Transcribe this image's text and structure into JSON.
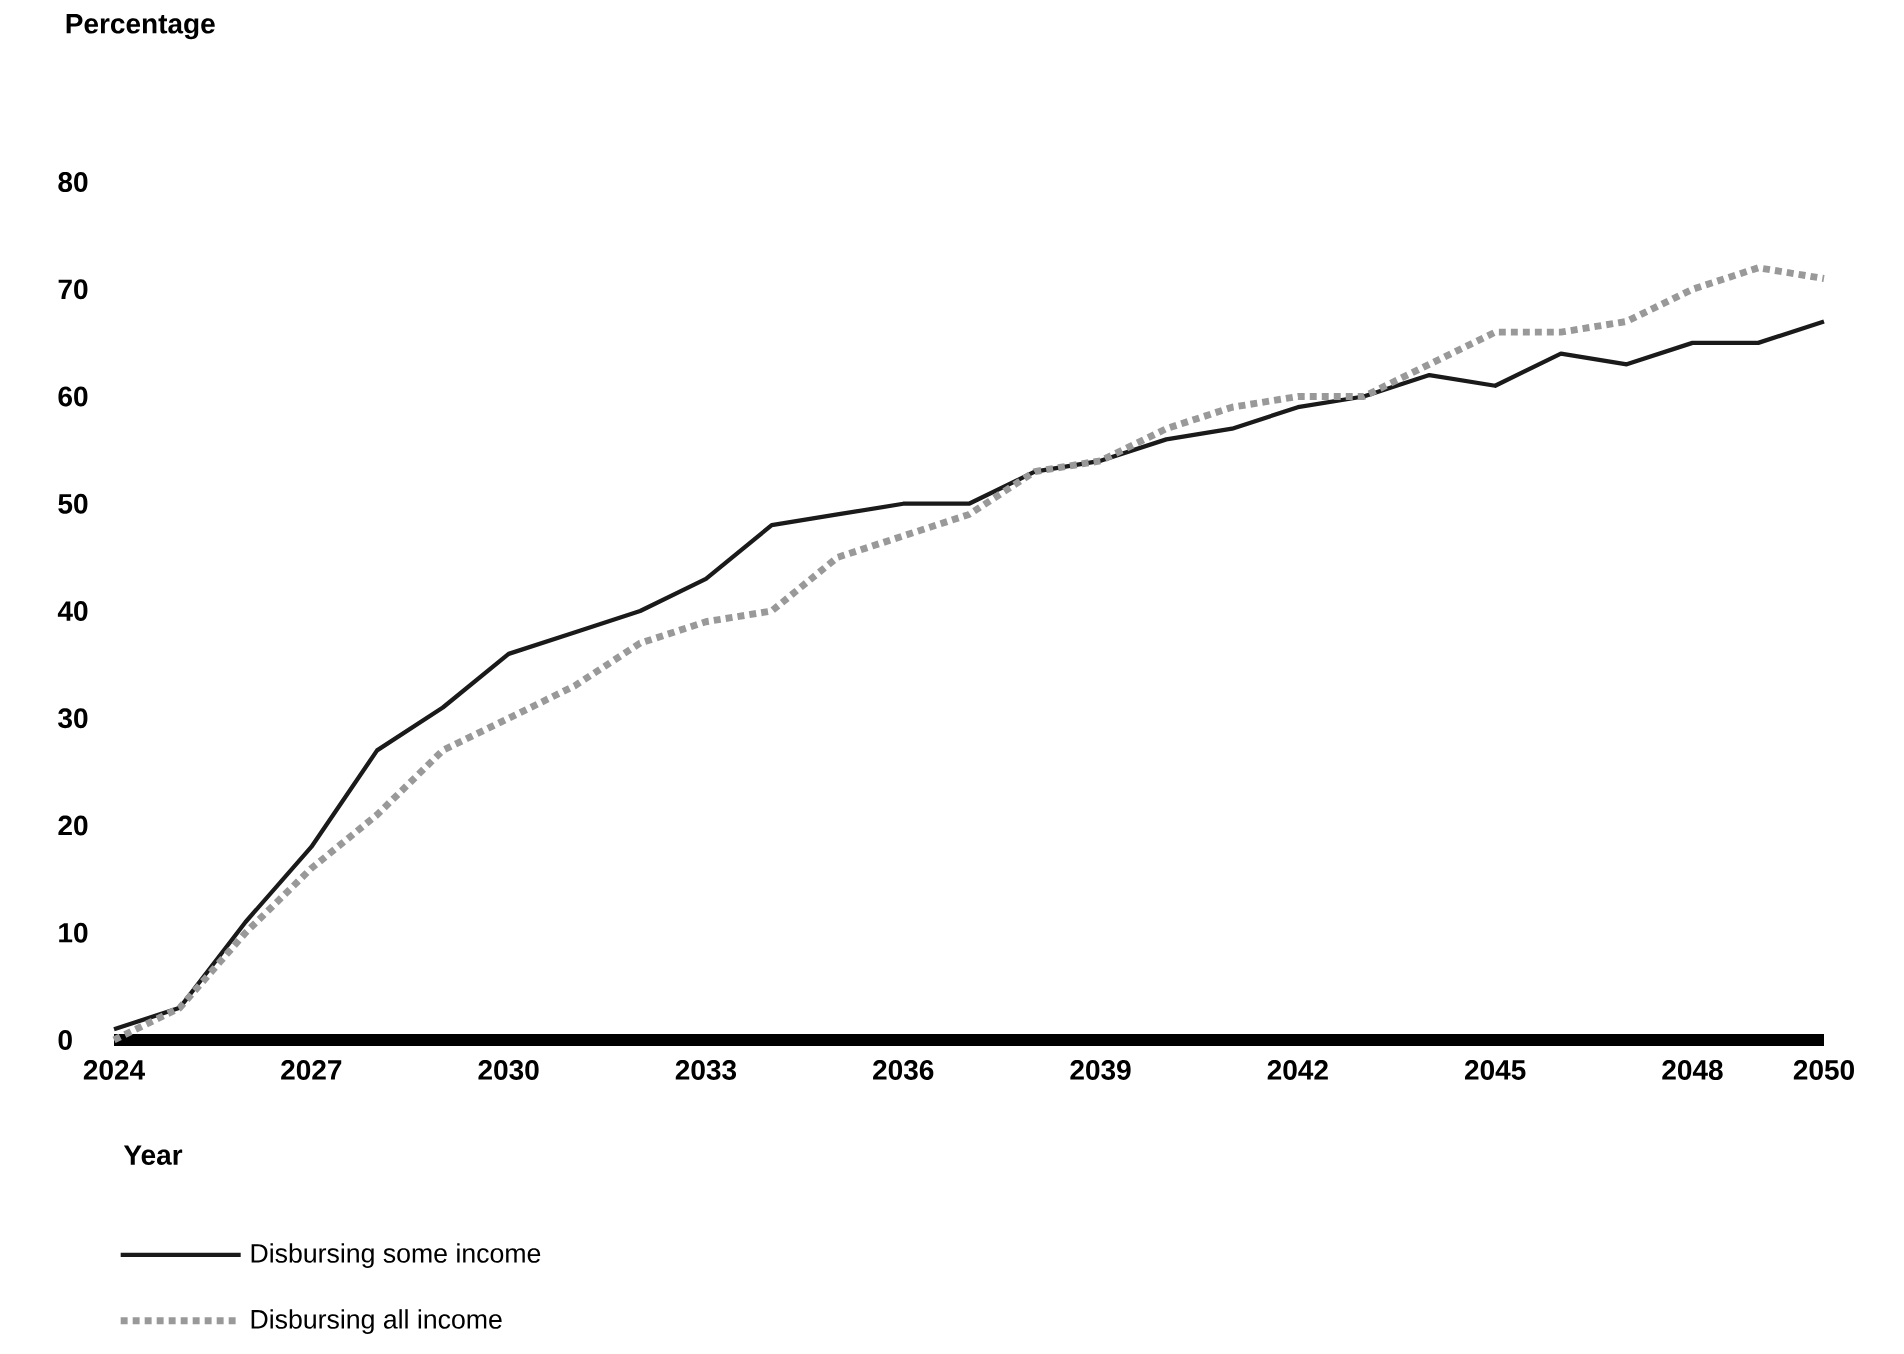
{
  "chart_data": {
    "type": "line",
    "xlabel": "Year",
    "ylabel": "Percentage",
    "x": [
      2024,
      2025,
      2026,
      2027,
      2028,
      2029,
      2030,
      2031,
      2032,
      2033,
      2034,
      2035,
      2036,
      2037,
      2038,
      2039,
      2040,
      2041,
      2042,
      2043,
      2044,
      2045,
      2046,
      2047,
      2048,
      2049,
      2050
    ],
    "series": [
      {
        "name": "Disbursing some income",
        "color": "#1a1a1a",
        "line_style": "solid",
        "values": [
          1,
          3,
          11,
          18,
          27,
          31,
          36,
          38,
          40,
          43,
          48,
          49,
          50,
          50,
          53,
          54,
          56,
          57,
          59,
          60,
          62,
          61,
          64,
          63,
          65,
          65,
          67
        ]
      },
      {
        "name": "Disbursing all income",
        "color": "#999999",
        "line_style": "dotted",
        "values": [
          0,
          3,
          10,
          16,
          21,
          27,
          30,
          33,
          37,
          39,
          40,
          45,
          47,
          49,
          53,
          54,
          57,
          59,
          60,
          60,
          63,
          66,
          66,
          67,
          70,
          72,
          71
        ]
      }
    ],
    "xlim": [
      2024,
      2050
    ],
    "ylim": [
      0,
      80
    ],
    "xticks": [
      2024,
      2027,
      2030,
      2033,
      2036,
      2039,
      2042,
      2045,
      2048,
      2050
    ],
    "yticks": [
      0,
      10,
      20,
      30,
      40,
      50,
      60,
      70,
      80
    ],
    "legend": "bottom",
    "marker": "none"
  }
}
